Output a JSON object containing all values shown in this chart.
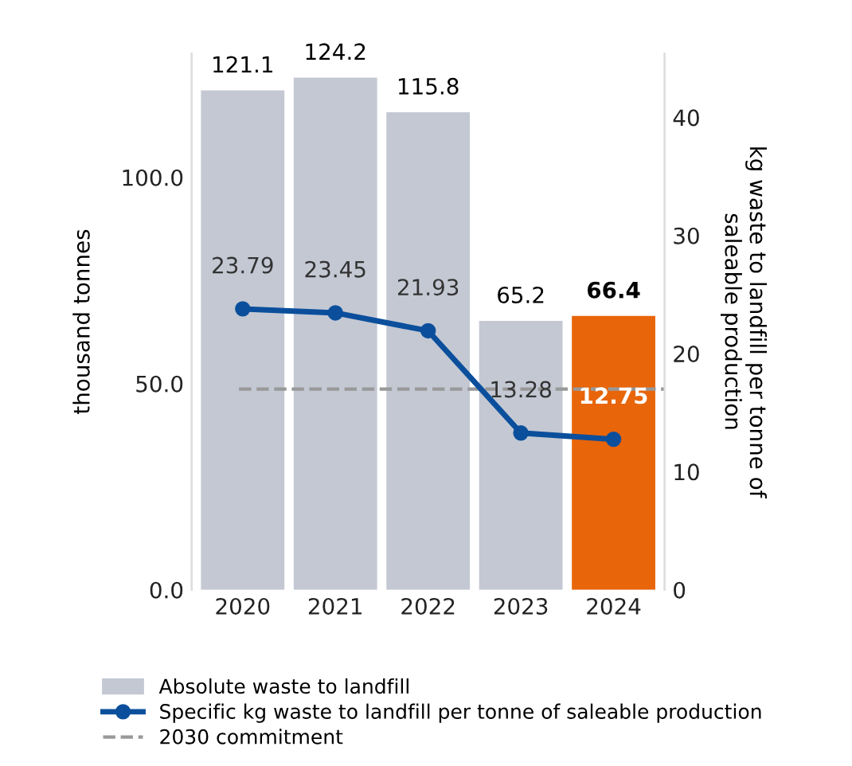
{
  "chart_data": {
    "type": "bar",
    "categories": [
      "2020",
      "2021",
      "2022",
      "2023",
      "2024"
    ],
    "ylabel": "thousand tonnes",
    "y2label": "kg waste to landfill per tonne of\nsaleable production",
    "series": [
      {
        "name": "Absolute waste to landfill",
        "colors": [
          "#c3c8d3",
          "#c3c8d3",
          "#c3c8d3",
          "#c3c8d3",
          "#e8650a"
        ],
        "values": [
          121.1,
          124.2,
          115.8,
          65.2,
          66.4
        ]
      },
      {
        "name": "Specific kg waste to landfill per tonne of saleable production",
        "type": "line",
        "axis": "y2",
        "color": "#0b4f9c",
        "marker": "circle",
        "values": [
          23.79,
          23.45,
          21.93,
          13.28,
          12.75
        ]
      }
    ],
    "ylim": [
      0,
      130
    ],
    "yticks": [
      {
        "value": 0,
        "label": "0.0"
      },
      {
        "value": 50,
        "label": "50.0"
      },
      {
        "value": 100,
        "label": "100.0"
      }
    ],
    "y2lim": [
      0,
      45.4
    ],
    "y2ticks": [
      0,
      10,
      20,
      30,
      40
    ],
    "ref_lines": [
      {
        "axis": "y2",
        "value": 17,
        "label": "2030 commitment",
        "color": "#999999",
        "line_style": "dashed"
      }
    ],
    "data_labels": true,
    "legend": "bottom",
    "grid": false
  }
}
